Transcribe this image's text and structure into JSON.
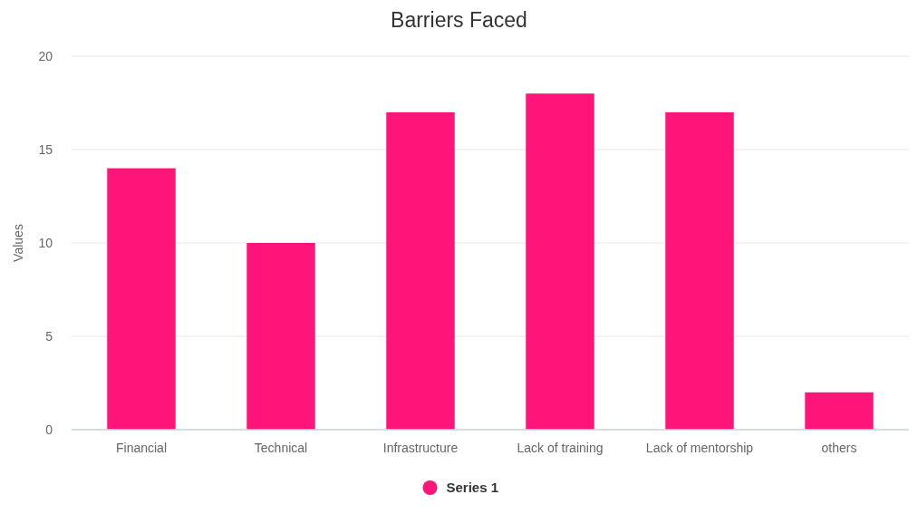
{
  "chart_data": {
    "type": "bar",
    "title": "Barriers Faced",
    "ylabel": "Values",
    "categories": [
      "Financial",
      "Technical",
      "Infrastructure",
      "Lack of training",
      "Lack of mentorship",
      "others"
    ],
    "series": [
      {
        "name": "Series 1",
        "color": "#ff1479",
        "values": [
          14,
          10,
          17,
          18,
          17,
          2
        ]
      }
    ],
    "ylim": [
      0,
      20
    ],
    "yticks": [
      0,
      5,
      10,
      15,
      20
    ],
    "grid": "y",
    "legend": "bottom"
  }
}
